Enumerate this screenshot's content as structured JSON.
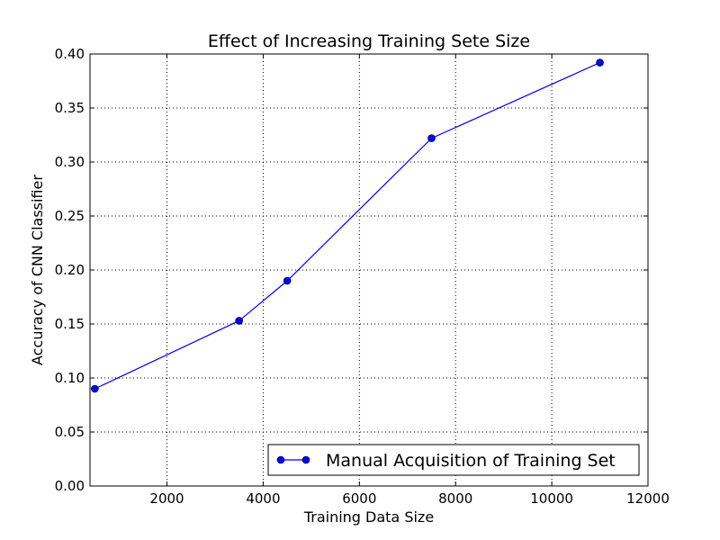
{
  "chart_data": {
    "type": "line",
    "title": "Effect of Increasing Training Sete Size",
    "xlabel": "Training Data Size",
    "ylabel": "Accuracy of CNN Classifier",
    "xlim": [
      400,
      12000
    ],
    "ylim": [
      0.0,
      0.4
    ],
    "xticks": [
      2000,
      4000,
      6000,
      8000,
      10000,
      12000
    ],
    "xtick_labels": [
      "2000",
      "4000",
      "6000",
      "8000",
      "10000",
      "12000"
    ],
    "yticks": [
      0.0,
      0.05,
      0.1,
      0.15,
      0.2,
      0.25,
      0.3,
      0.35,
      0.4
    ],
    "ytick_labels": [
      "0.00",
      "0.05",
      "0.10",
      "0.15",
      "0.20",
      "0.25",
      "0.30",
      "0.35",
      "0.40"
    ],
    "grid": true,
    "legend_position": "lower-right",
    "series": [
      {
        "name": "Manual Acquisition of Training Set",
        "color": "#0000ff",
        "marker": "circle",
        "x": [
          500,
          3500,
          4500,
          7500,
          11000
        ],
        "y": [
          0.09,
          0.153,
          0.19,
          0.322,
          0.392
        ]
      }
    ]
  }
}
